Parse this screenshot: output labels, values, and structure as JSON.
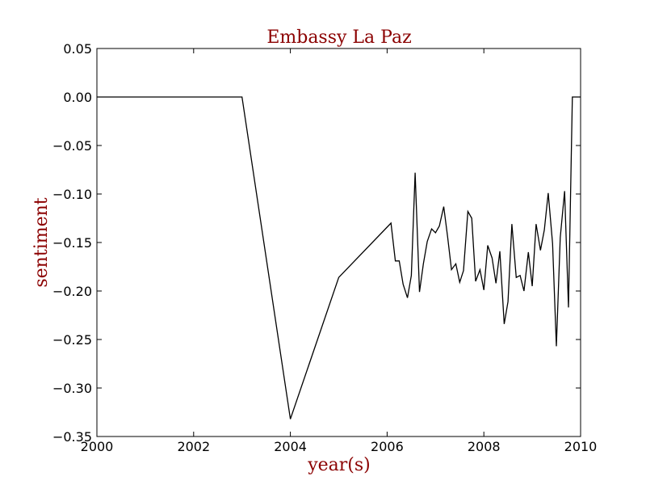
{
  "chart_data": {
    "type": "line",
    "title": "Embassy La Paz",
    "xlabel": "year(s)",
    "ylabel": "sentiment",
    "xlim": [
      2000,
      2010
    ],
    "ylim": [
      -0.35,
      0.05
    ],
    "xticks": [
      2000,
      2002,
      2004,
      2006,
      2008,
      2010
    ],
    "xtick_labels": [
      "2000",
      "2002",
      "2004",
      "2006",
      "2008",
      "2010"
    ],
    "yticks": [
      0.05,
      0.0,
      -0.05,
      -0.1,
      -0.15,
      -0.2,
      -0.25,
      -0.3,
      -0.35
    ],
    "ytick_labels": [
      "0.05",
      "0.00",
      "−0.05",
      "−0.10",
      "−0.15",
      "−0.20",
      "−0.25",
      "−0.30",
      "−0.35"
    ],
    "grid": false,
    "series": [
      {
        "color": "#000000",
        "x": [
          2000.0,
          2003.0,
          2004.0,
          2005.0,
          2006.08,
          2006.17,
          2006.25,
          2006.33,
          2006.42,
          2006.5,
          2006.58,
          2006.67,
          2006.75,
          2006.83,
          2006.92,
          2007.0,
          2007.08,
          2007.17,
          2007.25,
          2007.33,
          2007.42,
          2007.5,
          2007.58,
          2007.67,
          2007.75,
          2007.83,
          2007.92,
          2008.0,
          2008.08,
          2008.17,
          2008.25,
          2008.33,
          2008.42,
          2008.5,
          2008.58,
          2008.67,
          2008.75,
          2008.83,
          2008.92,
          2009.0,
          2009.08,
          2009.17,
          2009.25,
          2009.33,
          2009.42,
          2009.5,
          2009.58,
          2009.67,
          2009.75,
          2009.83,
          2009.92,
          2010.0
        ],
        "y": [
          0.0,
          0.0,
          -0.332,
          -0.186,
          -0.13,
          -0.169,
          -0.169,
          -0.193,
          -0.207,
          -0.184,
          -0.078,
          -0.201,
          -0.172,
          -0.149,
          -0.136,
          -0.14,
          -0.133,
          -0.113,
          -0.144,
          -0.178,
          -0.172,
          -0.191,
          -0.179,
          -0.118,
          -0.125,
          -0.19,
          -0.178,
          -0.199,
          -0.153,
          -0.166,
          -0.192,
          -0.159,
          -0.234,
          -0.211,
          -0.131,
          -0.186,
          -0.184,
          -0.2,
          -0.16,
          -0.195,
          -0.131,
          -0.158,
          -0.137,
          -0.099,
          -0.151,
          -0.257,
          -0.145,
          -0.097,
          -0.217,
          0.0,
          0.0,
          0.0
        ]
      }
    ]
  },
  "colors": {
    "title": "#8b0000",
    "axis_label": "#8b0000",
    "line": "#000000",
    "frame": "#000000"
  }
}
